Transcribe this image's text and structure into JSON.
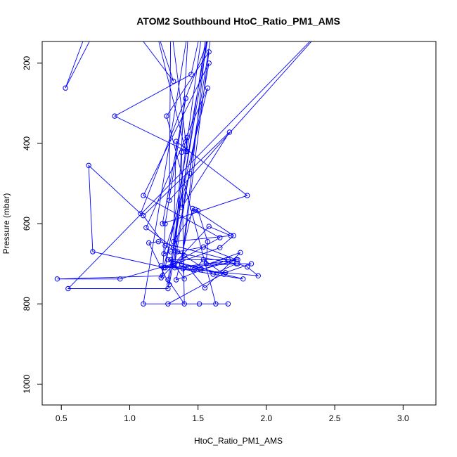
{
  "chart_data": {
    "type": "scatter",
    "title": "ATOM2 Southbound HtoC_Ratio_PM1_AMS",
    "xlabel": "HtoC_Ratio_PM1_AMS",
    "ylabel": "Pressure (mbar)",
    "xlim": [
      0.36,
      3.24
    ],
    "ylim": [
      1052,
      146
    ],
    "y_reversed": true,
    "grid": false,
    "legend": "none",
    "x_ticks": [
      "0.5",
      "1.0",
      "1.5",
      "2.0",
      "2.5",
      "3.0"
    ],
    "y_ticks": [
      "200",
      "400",
      "600",
      "800",
      "1000"
    ],
    "marker": "open-circle",
    "series": [
      {
        "color": "#0000ff",
        "line_and_points": true,
        "points": [
          [
            0.76,
            110
          ],
          [
            0.53,
            262
          ],
          [
            0.73,
            80
          ],
          [
            1.02,
            110
          ],
          [
            1.32,
            245
          ],
          [
            1.18,
            100
          ],
          [
            1.41,
            420
          ],
          [
            1.55,
            70
          ],
          [
            1.45,
            228
          ],
          [
            0.89,
            332
          ],
          [
            1.42,
            420
          ],
          [
            1.3,
            100
          ],
          [
            1.29,
            542
          ],
          [
            2.45,
            100
          ],
          [
            0.55,
            762
          ],
          [
            1.28,
            762
          ],
          [
            1.58,
            84
          ],
          [
            1.38,
            700
          ],
          [
            1.58,
            172
          ],
          [
            1.27,
            332
          ],
          [
            1.63,
            800
          ],
          [
            1.1,
            800
          ],
          [
            1.43,
            110
          ],
          [
            1.33,
            700
          ],
          [
            1.6,
            120
          ],
          [
            1.08,
            575
          ],
          [
            0.7,
            455
          ],
          [
            0.73,
            670
          ],
          [
            1.26,
            710
          ],
          [
            1.6,
            80
          ],
          [
            1.28,
            740
          ],
          [
            1.4,
            800
          ],
          [
            1.38,
            422
          ],
          [
            1.42,
            385
          ],
          [
            1.32,
            660
          ],
          [
            1.34,
            395
          ],
          [
            1.86,
            530
          ],
          [
            1.24,
            600
          ],
          [
            1.41,
            288
          ],
          [
            1.26,
            600
          ],
          [
            1.24,
            730
          ],
          [
            0.47,
            738
          ],
          [
            0.93,
            738
          ],
          [
            1.32,
            700
          ],
          [
            1.66,
            635
          ],
          [
            1.1,
            530
          ],
          [
            1.58,
            200
          ],
          [
            1.29,
            752
          ],
          [
            1.14,
            648
          ],
          [
            1.21,
            645
          ],
          [
            1.72,
            690
          ],
          [
            1.34,
            740
          ],
          [
            1.46,
            562
          ],
          [
            1.76,
            630
          ],
          [
            1.66,
            660
          ],
          [
            1.25,
            710
          ],
          [
            1.79,
            700
          ],
          [
            1.86,
            708
          ],
          [
            1.94,
            730
          ],
          [
            1.33,
            710
          ],
          [
            1.79,
            690
          ],
          [
            1.52,
            715
          ],
          [
            1.28,
            690
          ],
          [
            1.83,
            738
          ],
          [
            1.23,
            705
          ],
          [
            1.43,
            710
          ],
          [
            1.55,
            760
          ],
          [
            1.81,
            672
          ],
          [
            1.48,
            712
          ],
          [
            1.69,
            726
          ],
          [
            1.54,
            690
          ],
          [
            1.47,
            715
          ],
          [
            1.39,
            712
          ],
          [
            1.4,
            738
          ],
          [
            1.3,
            690
          ],
          [
            1.78,
            690
          ],
          [
            1.54,
            658
          ],
          [
            1.35,
            670
          ],
          [
            1.26,
            655
          ],
          [
            1.1,
            580
          ],
          [
            1.73,
            372
          ],
          [
            1.38,
            560
          ],
          [
            1.44,
            475
          ],
          [
            1.25,
            675
          ],
          [
            1.3,
            670
          ],
          [
            1.78,
            700
          ],
          [
            1.61,
            726
          ],
          [
            1.4,
            680
          ],
          [
            1.12,
            610
          ],
          [
            1.57,
            262
          ],
          [
            1.23,
            735
          ],
          [
            1.58,
            607
          ],
          [
            1.74,
            630
          ],
          [
            1.32,
            645
          ],
          [
            1.48,
            565
          ],
          [
            1.5,
            568
          ],
          [
            1.57,
            645
          ],
          [
            1.56,
            700
          ],
          [
            1.89,
            700
          ],
          [
            1.7,
            722
          ],
          [
            1.28,
            800
          ],
          [
            1.72,
            800
          ],
          [
            1.51,
            800
          ]
        ]
      }
    ]
  }
}
